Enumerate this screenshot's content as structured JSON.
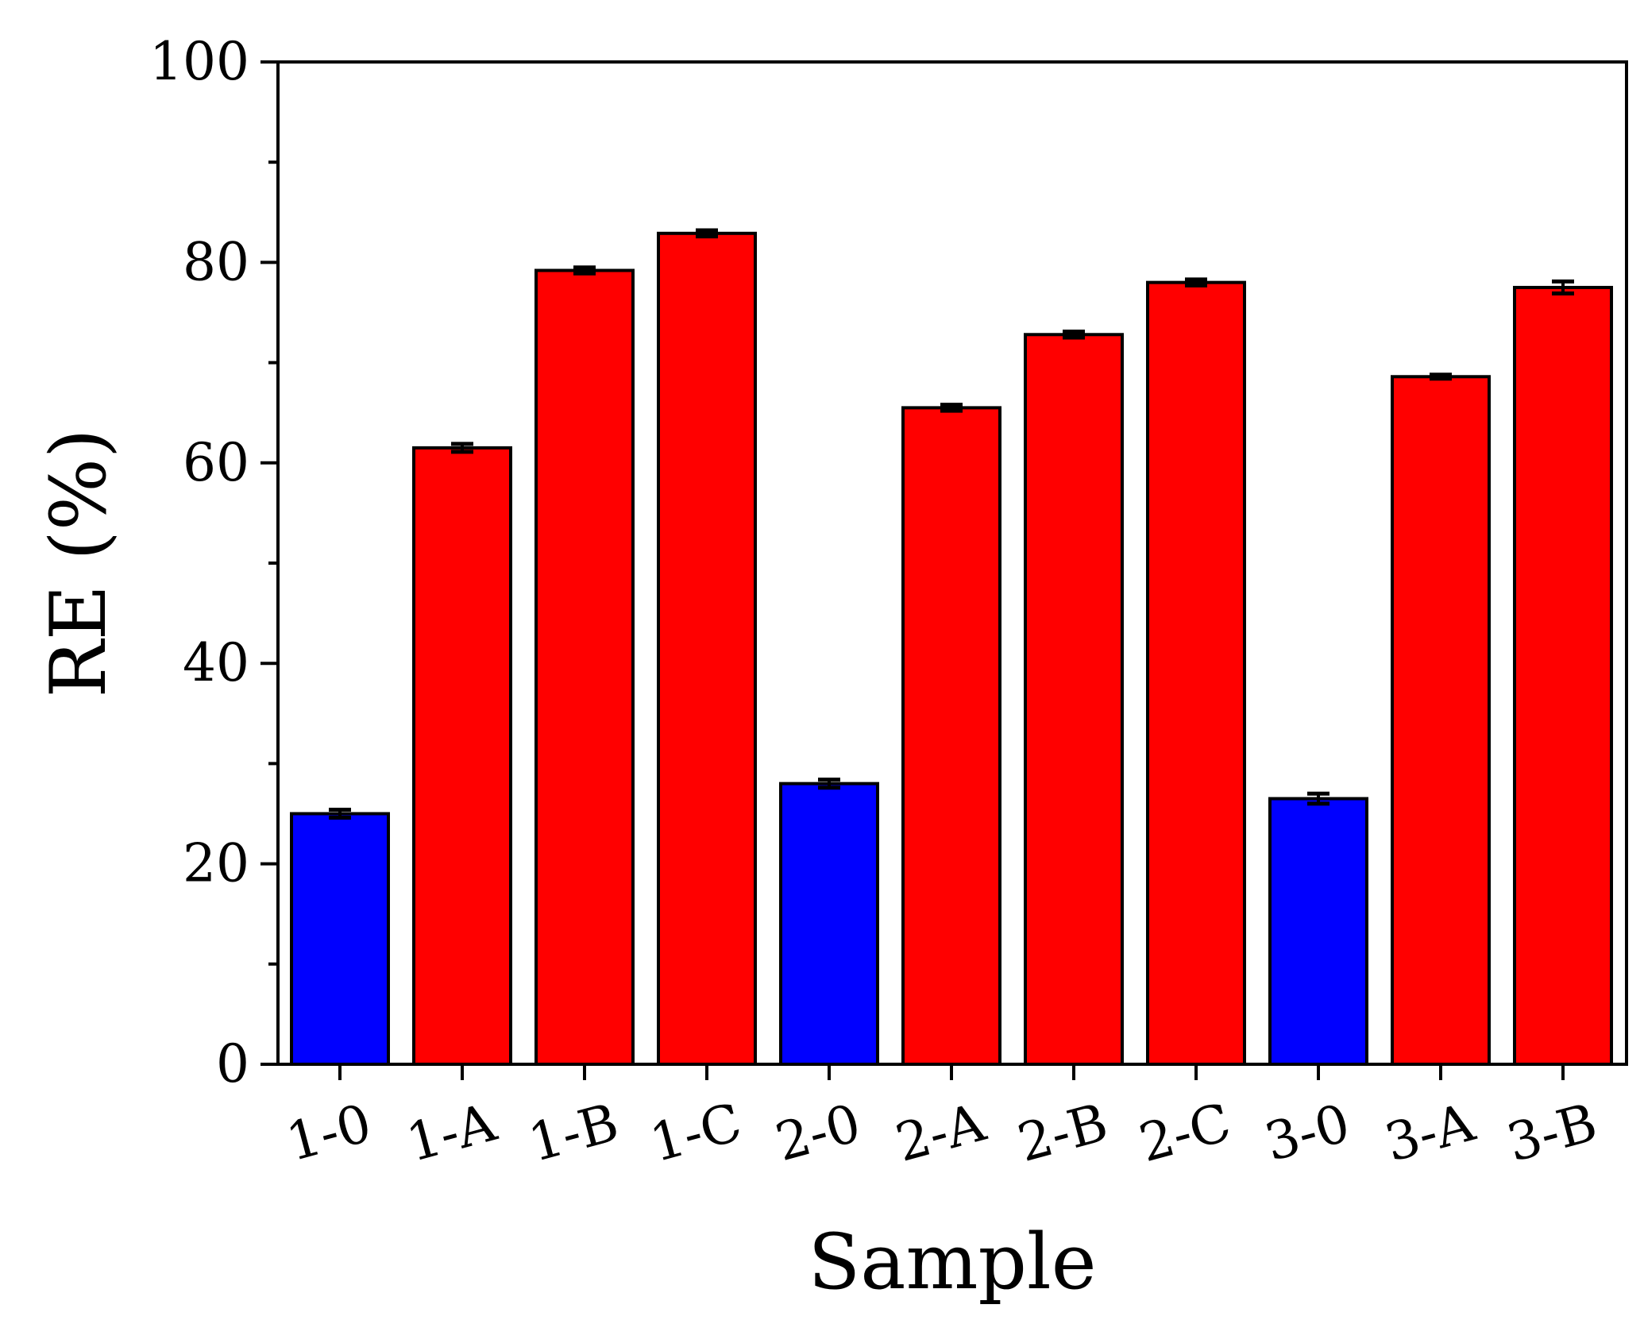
{
  "chart_data": {
    "type": "bar",
    "title": "",
    "xlabel": "Sample",
    "ylabel": "RE (%)",
    "ylim": [
      0,
      100
    ],
    "yticks": [
      0,
      20,
      40,
      60,
      80,
      100
    ],
    "y_minor_ticks": [
      10,
      30,
      50,
      70,
      90
    ],
    "categories": [
      "1-0",
      "1-A",
      "1-B",
      "1-C",
      "2-0",
      "2-A",
      "2-B",
      "2-C",
      "3-0",
      "3-A",
      "3-B"
    ],
    "values": [
      25.0,
      61.5,
      79.2,
      82.9,
      28.0,
      65.5,
      72.8,
      78.0,
      26.5,
      68.6,
      77.5
    ],
    "errors": [
      0.4,
      0.4,
      0.3,
      0.3,
      0.4,
      0.3,
      0.3,
      0.3,
      0.5,
      0.2,
      0.6
    ],
    "bar_colors": [
      "#0000ff",
      "#ff0000",
      "#ff0000",
      "#ff0000",
      "#0000ff",
      "#ff0000",
      "#ff0000",
      "#ff0000",
      "#0000ff",
      "#ff0000",
      "#ff0000"
    ],
    "grid": false,
    "legend": "none"
  }
}
